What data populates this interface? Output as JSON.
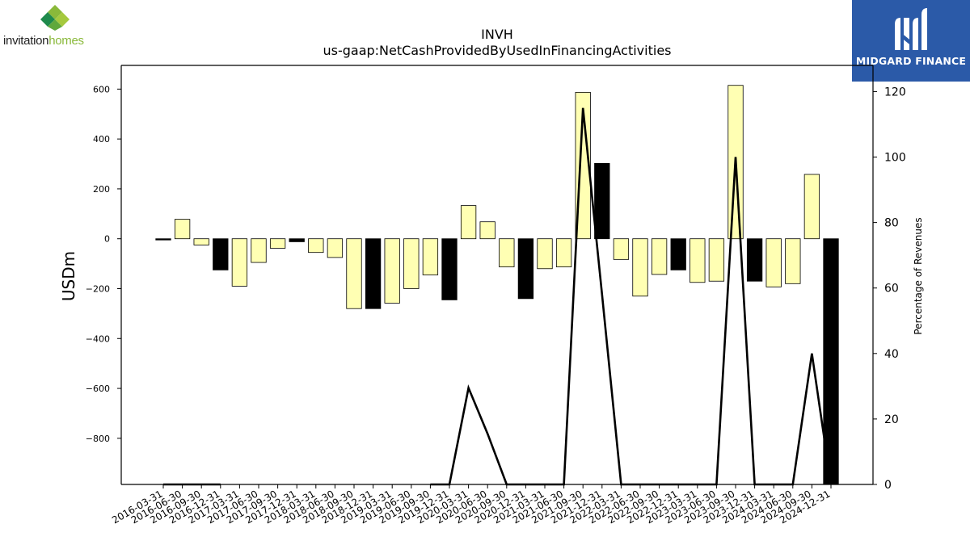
{
  "logos": {
    "left_text_1": "invitation",
    "left_text_2": "homes",
    "right_text": "MIDGARD FINANCE"
  },
  "colors": {
    "bar_positive": "#ffffb3",
    "bar_negative": "#000000",
    "line": "#000000",
    "midgard_blue": "#2b5aa8"
  },
  "chart_data": {
    "type": "bar",
    "title": "INVH",
    "subtitle": "us-gaap:NetCashProvidedByUsedInFinancingActivities",
    "ylabel": "USDm",
    "y2label": "Percentage of Revenues",
    "ylim": [
      -985,
      695
    ],
    "y2lim": [
      0,
      128
    ],
    "yticks": [
      600,
      400,
      200,
      0,
      -200,
      -400,
      -600,
      -800
    ],
    "y2ticks": [
      0,
      20,
      40,
      60,
      80,
      100,
      120
    ],
    "grid": false,
    "categories": [
      "2016-03-31",
      "2016-06-30",
      "2016-09-30",
      "2016-12-31",
      "2017-03-31",
      "2017-06-30",
      "2017-09-30",
      "2017-12-31",
      "2018-03-31",
      "2018-06-30",
      "2018-09-30",
      "2018-12-31",
      "2019-03-31",
      "2019-06-30",
      "2019-09-30",
      "2019-12-31",
      "2020-03-31",
      "2020-06-30",
      "2020-09-30",
      "2020-12-31",
      "2021-03-31",
      "2021-06-30",
      "2021-09-30",
      "2021-12-31",
      "2022-03-31",
      "2022-06-30",
      "2022-09-30",
      "2022-12-31",
      "2023-03-31",
      "2023-06-30",
      "2023-09-30",
      "2023-12-31",
      "2024-03-31",
      "2024-06-30",
      "2024-09-30",
      "2024-12-31"
    ],
    "values": [
      -3,
      78,
      -25,
      -125,
      -190,
      -95,
      -38,
      -12,
      -55,
      -75,
      -280,
      -280,
      -258,
      -200,
      -145,
      -245,
      133,
      68,
      -113,
      -240,
      -120,
      -113,
      587,
      302,
      -83,
      -230,
      -143,
      -125,
      -175,
      -170,
      615,
      -170,
      -193,
      -180,
      258,
      -985
    ],
    "bar_colors": [
      "negative",
      "positive",
      "positive",
      "negative",
      "positive",
      "positive",
      "positive",
      "negative",
      "positive",
      "positive",
      "positive",
      "negative",
      "positive",
      "positive",
      "positive",
      "negative",
      "positive",
      "positive",
      "positive",
      "negative",
      "positive",
      "positive",
      "positive",
      "negative",
      "positive",
      "positive",
      "positive",
      "negative",
      "positive",
      "positive",
      "positive",
      "negative",
      "positive",
      "positive",
      "positive",
      "negative"
    ],
    "series": [
      {
        "type": "line",
        "axis": "right",
        "values": [
          0,
          0,
          0,
          0,
          null,
          null,
          null,
          null,
          null,
          null,
          null,
          null,
          null,
          null,
          0,
          0,
          29.5,
          15.5,
          0,
          0,
          0,
          0,
          115,
          58,
          0,
          0,
          0,
          0,
          0,
          0,
          100,
          0,
          0,
          0,
          40,
          0
        ]
      }
    ]
  }
}
